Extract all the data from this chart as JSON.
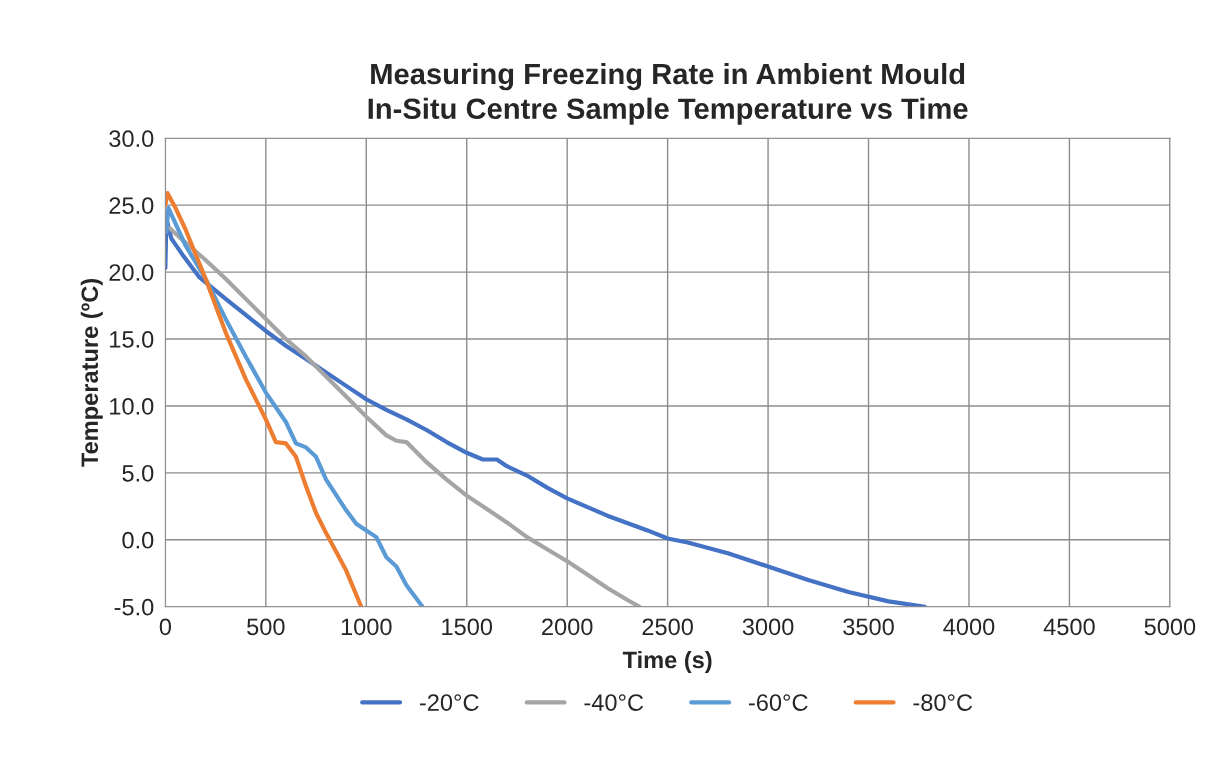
{
  "chart_data": {
    "type": "line",
    "title": "Measuring Freezing Rate in Ambient Mould\nIn-Situ Centre Sample Temperature vs Time",
    "xlabel": "Time (s)",
    "ylabel": "Temperature (ºC)",
    "xlim": [
      0,
      5000
    ],
    "xticks": [
      0,
      500,
      1000,
      1500,
      2000,
      2500,
      3000,
      3500,
      4000,
      4500,
      5000
    ],
    "ylim": [
      -5,
      30
    ],
    "yticks": [
      {
        "value": -5,
        "label": "-5.0"
      },
      {
        "value": 0,
        "label": "0.0"
      },
      {
        "value": 5,
        "label": "5.0"
      },
      {
        "value": 10,
        "label": "10.0"
      },
      {
        "value": 15,
        "label": "15.0"
      },
      {
        "value": 20,
        "label": "20.0"
      },
      {
        "value": 25,
        "label": "25.0"
      },
      {
        "value": 30,
        "label": "30.0"
      }
    ],
    "grid": true,
    "legend": "bottom",
    "marker": "none",
    "line_style": "solid",
    "series": [
      {
        "name": "-20°C",
        "color": "#4472c4",
        "x": [
          0,
          5,
          30,
          85,
          170,
          300,
          400,
          500,
          600,
          700,
          800,
          900,
          1000,
          1100,
          1200,
          1300,
          1400,
          1500,
          1580,
          1650,
          1700,
          1800,
          1900,
          2000,
          2200,
          2400,
          2500,
          2600,
          2800,
          3000,
          3200,
          3400,
          3600,
          3780
        ],
        "values": [
          20.3,
          24.0,
          22.5,
          21.3,
          19.6,
          18.0,
          16.8,
          15.6,
          14.5,
          13.5,
          12.5,
          11.5,
          10.5,
          9.7,
          9.0,
          8.2,
          7.3,
          6.5,
          6.0,
          6.0,
          5.5,
          4.8,
          3.9,
          3.1,
          1.8,
          0.7,
          0.1,
          -0.2,
          -1.0,
          -2.0,
          -3.0,
          -3.9,
          -4.6,
          -5.0
        ]
      },
      {
        "name": "-40°C",
        "color": "#a5a5a5",
        "x": [
          20,
          100,
          200,
          300,
          400,
          500,
          600,
          700,
          800,
          900,
          1000,
          1100,
          1150,
          1200,
          1300,
          1400,
          1500,
          1600,
          1700,
          1800,
          1900,
          2000,
          2100,
          2200,
          2300,
          2360
        ],
        "values": [
          23.3,
          22.2,
          20.9,
          19.5,
          18.0,
          16.5,
          15.0,
          13.7,
          12.2,
          10.7,
          9.2,
          7.8,
          7.4,
          7.3,
          5.8,
          4.5,
          3.3,
          2.3,
          1.3,
          0.2,
          -0.7,
          -1.6,
          -2.6,
          -3.6,
          -4.5,
          -5.0
        ]
      },
      {
        "name": "-60°C",
        "color": "#5b9bd5",
        "x": [
          5,
          15,
          100,
          200,
          300,
          400,
          500,
          600,
          650,
          700,
          750,
          800,
          900,
          950,
          1000,
          1050,
          1100,
          1150,
          1200,
          1280
        ],
        "values": [
          23.0,
          24.8,
          22.0,
          19.5,
          16.5,
          13.7,
          11.0,
          8.8,
          7.2,
          6.9,
          6.2,
          4.5,
          2.2,
          1.2,
          0.7,
          0.2,
          -1.3,
          -2.0,
          -3.4,
          -5.0
        ]
      },
      {
        "name": "-80°C",
        "color": "#ed7d31",
        "x": [
          0,
          10,
          50,
          100,
          200,
          300,
          400,
          500,
          550,
          600,
          650,
          700,
          750,
          800,
          900,
          975
        ],
        "values": [
          25.0,
          25.9,
          24.8,
          23.2,
          19.5,
          15.5,
          12.0,
          9.0,
          7.3,
          7.2,
          6.2,
          4.0,
          2.0,
          0.5,
          -2.3,
          -5.0
        ]
      }
    ]
  }
}
